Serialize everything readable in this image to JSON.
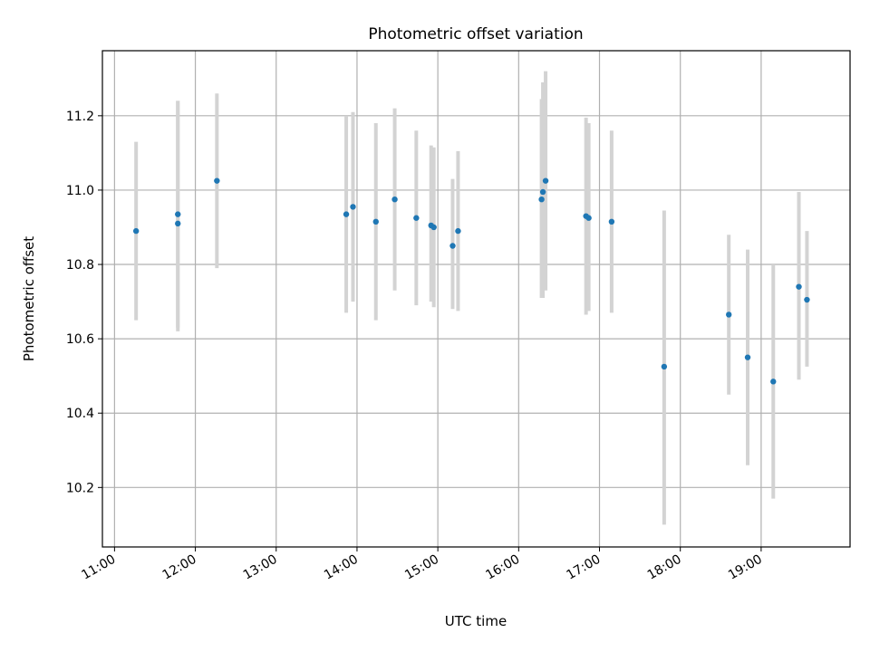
{
  "chart_data": {
    "type": "scatter",
    "title": "Photometric offset variation",
    "xlabel": "UTC time",
    "ylabel": "Photometric offset",
    "x_ticks": [
      "11:00",
      "12:00",
      "13:00",
      "14:00",
      "15:00",
      "16:00",
      "17:00",
      "18:00",
      "19:00"
    ],
    "y_ticks": [
      "10.2",
      "10.4",
      "10.6",
      "10.8",
      "11.0",
      "11.2"
    ],
    "xlim": [
      "10:51",
      "20:06"
    ],
    "ylim": [
      10.04,
      11.375
    ],
    "grid": true,
    "point_color": "#1f77b4",
    "errorbar_color": "#d3d3d3",
    "points": [
      {
        "time": "11:16",
        "value": 10.89,
        "low": 10.65,
        "high": 11.13
      },
      {
        "time": "11:47",
        "value": 10.91,
        "low": 10.62,
        "high": 11.24
      },
      {
        "time": "11:47",
        "value": 10.935,
        "low": 10.63,
        "high": 11.24
      },
      {
        "time": "12:16",
        "value": 11.025,
        "low": 10.79,
        "high": 11.26
      },
      {
        "time": "13:52",
        "value": 10.935,
        "low": 10.67,
        "high": 11.2
      },
      {
        "time": "13:57",
        "value": 10.955,
        "low": 10.7,
        "high": 11.21
      },
      {
        "time": "14:14",
        "value": 10.915,
        "low": 10.65,
        "high": 11.18
      },
      {
        "time": "14:28",
        "value": 10.975,
        "low": 10.73,
        "high": 11.22
      },
      {
        "time": "14:44",
        "value": 10.925,
        "low": 10.69,
        "high": 11.16
      },
      {
        "time": "14:55",
        "value": 10.905,
        "low": 10.7,
        "high": 11.12
      },
      {
        "time": "14:57",
        "value": 10.9,
        "low": 10.685,
        "high": 11.115
      },
      {
        "time": "15:11",
        "value": 10.85,
        "low": 10.68,
        "high": 11.03
      },
      {
        "time": "15:15",
        "value": 10.89,
        "low": 10.675,
        "high": 11.105
      },
      {
        "time": "16:17",
        "value": 10.975,
        "low": 10.71,
        "high": 11.245
      },
      {
        "time": "16:18",
        "value": 10.995,
        "low": 10.71,
        "high": 11.29
      },
      {
        "time": "16:20",
        "value": 11.025,
        "low": 10.73,
        "high": 11.32
      },
      {
        "time": "16:50",
        "value": 10.93,
        "low": 10.665,
        "high": 11.195
      },
      {
        "time": "16:52",
        "value": 10.925,
        "low": 10.675,
        "high": 11.18
      },
      {
        "time": "17:09",
        "value": 10.915,
        "low": 10.67,
        "high": 11.16
      },
      {
        "time": "17:48",
        "value": 10.525,
        "low": 10.1,
        "high": 10.945
      },
      {
        "time": "18:36",
        "value": 10.665,
        "low": 10.45,
        "high": 10.88
      },
      {
        "time": "18:50",
        "value": 10.55,
        "low": 10.26,
        "high": 10.84
      },
      {
        "time": "19:09",
        "value": 10.485,
        "low": 10.17,
        "high": 10.8
      },
      {
        "time": "19:28",
        "value": 10.74,
        "low": 10.49,
        "high": 10.995
      },
      {
        "time": "19:34",
        "value": 10.705,
        "low": 10.525,
        "high": 10.89
      }
    ]
  }
}
